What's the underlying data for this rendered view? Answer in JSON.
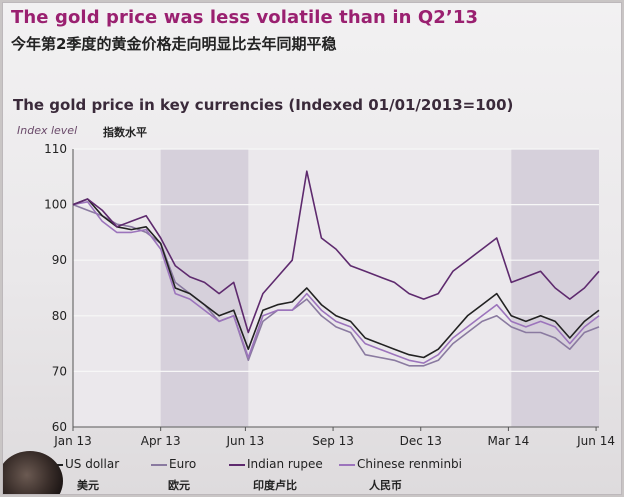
{
  "slide": {
    "title": "The gold price was less volatile than in Q2’13",
    "subtitle": "今年第2季度的黄金价格走向明显比去年同期平稳"
  },
  "colors": {
    "title": "#9a2070",
    "shade": "#cfc8d6",
    "us_dollar": "#222222",
    "euro": "#8a7aa0",
    "indian_rupee": "#5e2a6e",
    "chinese_renminbi": "#9c74bc"
  },
  "chart_data": {
    "type": "line",
    "title": "The gold price in key currencies (Indexed 01/01/2013=100)",
    "ylabel": "Index level",
    "ylabel_cn": "指数水平",
    "ylim": [
      60,
      110
    ],
    "yticks": [
      60,
      70,
      80,
      90,
      100,
      110
    ],
    "xlim": [
      0,
      18.0
    ],
    "xticks": [
      {
        "label": "Jan 13",
        "pos": 0
      },
      {
        "label": "Apr 13",
        "pos": 3
      },
      {
        "label": "Jun 13",
        "pos": 5.9
      },
      {
        "label": "Sep 13",
        "pos": 8.9
      },
      {
        "label": "Dec 13",
        "pos": 11.9
      },
      {
        "label": "Mar 14",
        "pos": 14.9
      },
      {
        "label": "Jun 14",
        "pos": 17.9
      }
    ],
    "shaded_periods": [
      [
        3,
        6
      ],
      [
        15,
        18
      ]
    ],
    "grid": true,
    "legend_position": "bottom",
    "series": [
      {
        "name": "US dollar",
        "name_cn": "美元",
        "color_key": "us_dollar",
        "x": [
          0,
          0.5,
          1,
          1.5,
          2,
          2.5,
          3,
          3.5,
          4,
          4.5,
          5,
          5.5,
          6,
          6.5,
          7,
          7.5,
          8,
          8.5,
          9,
          9.5,
          10,
          10.5,
          11,
          11.5,
          12,
          12.5,
          13,
          13.5,
          14,
          14.5,
          15,
          15.5,
          16,
          16.5,
          17,
          17.5,
          18
        ],
        "values": [
          100,
          101,
          98,
          96,
          95.5,
          96,
          93,
          85,
          84,
          82,
          80,
          81,
          74,
          81,
          82,
          82.5,
          85,
          82,
          80,
          79,
          76,
          75,
          74,
          73,
          72.5,
          74,
          77,
          80,
          82,
          84,
          80,
          79,
          80,
          79,
          76,
          79,
          81
        ]
      },
      {
        "name": "Euro",
        "name_cn": "欧元",
        "color_key": "euro",
        "x": [
          0,
          0.5,
          1,
          1.5,
          2,
          2.5,
          3,
          3.5,
          4,
          4.5,
          5,
          5.5,
          6,
          6.5,
          7,
          7.5,
          8,
          8.5,
          9,
          9.5,
          10,
          10.5,
          11,
          11.5,
          12,
          12.5,
          13,
          13.5,
          14,
          14.5,
          15,
          15.5,
          16,
          16.5,
          17,
          17.5,
          18
        ],
        "values": [
          100,
          99,
          98,
          96.5,
          96,
          95,
          93,
          86,
          84,
          82,
          79,
          80,
          72,
          79,
          81,
          81,
          83,
          80,
          78,
          77,
          73,
          72.5,
          72,
          71,
          71,
          72,
          75,
          77,
          79,
          80,
          78,
          77,
          77,
          76,
          74,
          77,
          78
        ]
      },
      {
        "name": "Indian rupee",
        "name_cn": "印度卢比",
        "color_key": "indian_rupee",
        "x": [
          0,
          0.5,
          1,
          1.5,
          2,
          2.5,
          3,
          3.5,
          4,
          4.5,
          5,
          5.5,
          6,
          6.5,
          7,
          7.5,
          8,
          8.5,
          9,
          9.5,
          10,
          10.5,
          11,
          11.5,
          12,
          12.5,
          13,
          13.5,
          14,
          14.5,
          15,
          15.5,
          16,
          16.5,
          17,
          17.5,
          18
        ],
        "values": [
          100,
          101,
          99,
          96,
          97,
          98,
          94,
          89,
          87,
          86,
          84,
          86,
          77,
          84,
          87,
          90,
          106,
          94,
          92,
          89,
          88,
          87,
          86,
          84,
          83,
          84,
          88,
          90,
          92,
          94,
          86,
          87,
          88,
          85,
          83,
          85,
          88
        ]
      },
      {
        "name": "Chinese renminbi",
        "name_cn": "人民币",
        "color_key": "chinese_renminbi",
        "x": [
          0,
          0.5,
          1,
          1.5,
          2,
          2.5,
          3,
          3.5,
          4,
          4.5,
          5,
          5.5,
          6,
          6.5,
          7,
          7.5,
          8,
          8.5,
          9,
          9.5,
          10,
          10.5,
          11,
          11.5,
          12,
          12.5,
          13,
          13.5,
          14,
          14.5,
          15,
          15.5,
          16,
          16.5,
          17,
          17.5,
          18
        ],
        "values": [
          100,
          100.5,
          97,
          95,
          95,
          95.5,
          92,
          84,
          83,
          81,
          79,
          80,
          72.5,
          80,
          81,
          81,
          84,
          81,
          79,
          78,
          75,
          74,
          73,
          72,
          71.5,
          73,
          76,
          78,
          80,
          82,
          79,
          78,
          79,
          78,
          75,
          78,
          80
        ]
      }
    ]
  }
}
